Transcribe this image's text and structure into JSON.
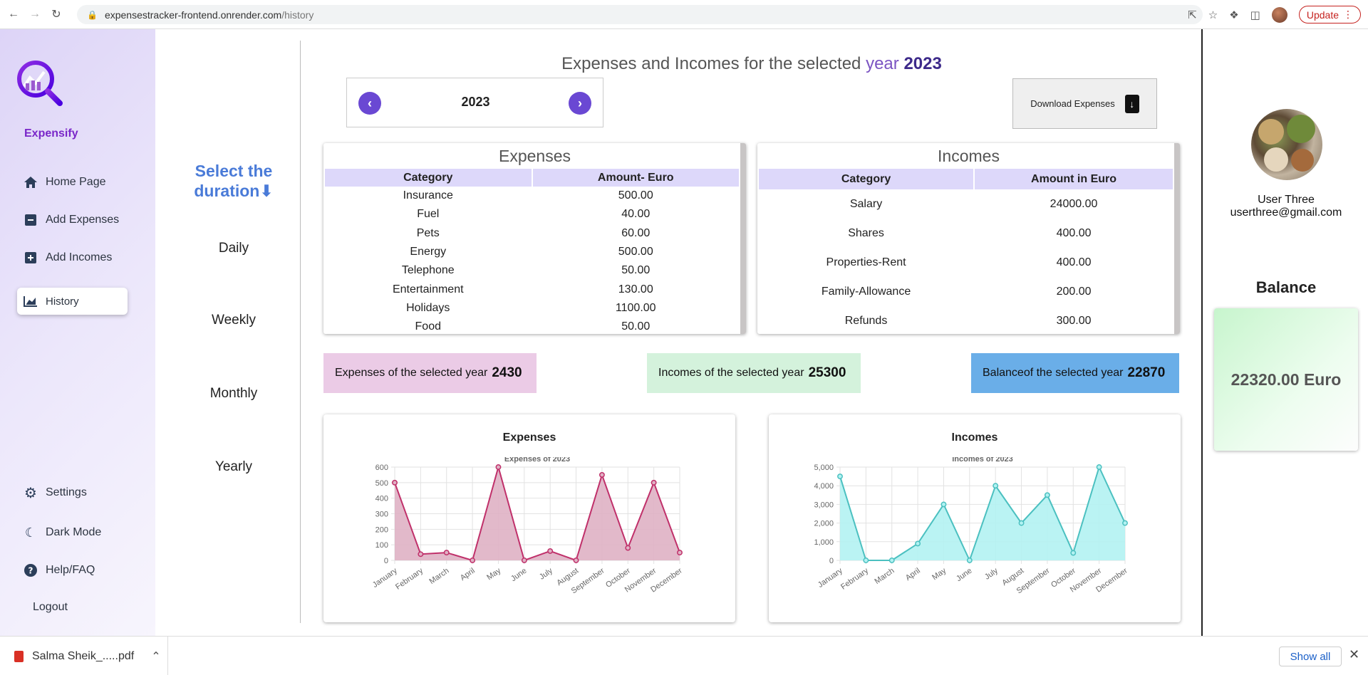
{
  "browser": {
    "url_host": "expensestracker-frontend.onrender.com",
    "url_path": "/history",
    "update_label": "Update"
  },
  "sidebar": {
    "brand": "Expensify",
    "items": [
      {
        "label": "Home Page",
        "icon": "home-icon"
      },
      {
        "label": "Add Expenses",
        "icon": "minus-square-icon"
      },
      {
        "label": "Add Incomes",
        "icon": "plus-square-icon"
      },
      {
        "label": "History",
        "icon": "chart-icon",
        "active": true
      }
    ],
    "bottom_items": [
      {
        "label": "Settings",
        "icon": "gear-icon"
      },
      {
        "label": "Dark Mode",
        "icon": "moon-icon"
      },
      {
        "label": "Help/FAQ",
        "icon": "question-icon"
      },
      {
        "label": "Logout"
      }
    ]
  },
  "duration": {
    "title_line1": "Select the",
    "title_line2": "duration",
    "arrow": "⬇",
    "options": [
      "Daily",
      "Weekly",
      "Monthly",
      "Yearly"
    ]
  },
  "main": {
    "title_prefix": "Expenses and Incomes for the selected",
    "title_word": "year",
    "title_year": "2023",
    "year_nav_value": "2023",
    "download_label": "Download Expenses"
  },
  "expenses_table": {
    "caption": "Expenses",
    "headers": [
      "Category",
      "Amount- Euro"
    ],
    "rows": [
      [
        "Insurance",
        "500.00"
      ],
      [
        "Fuel",
        "40.00"
      ],
      [
        "Pets",
        "60.00"
      ],
      [
        "Energy",
        "500.00"
      ],
      [
        "Telephone",
        "50.00"
      ],
      [
        "Entertainment",
        "130.00"
      ],
      [
        "Holidays",
        "1100.00"
      ],
      [
        "Food",
        "50.00"
      ]
    ]
  },
  "incomes_table": {
    "caption": "Incomes",
    "headers": [
      "Category",
      "Amount in Euro"
    ],
    "rows": [
      [
        "Salary",
        "24000.00"
      ],
      [
        "Shares",
        "400.00"
      ],
      [
        "Properties-Rent",
        "400.00"
      ],
      [
        "Family-Allowance",
        "200.00"
      ],
      [
        "Refunds",
        "300.00"
      ]
    ]
  },
  "summary": {
    "expenses_label": "Expenses of the selected year",
    "expenses_value": "2430",
    "incomes_label": "Incomes of the selected year",
    "incomes_value": "25300",
    "balance_label": "Balanceof the selected year",
    "balance_value": "22870",
    "colors": {
      "expenses": "#ebcbe6",
      "incomes": "#d4f2dc",
      "balance": "#6aaee8"
    }
  },
  "user": {
    "name": "User Three",
    "email": "userthree@gmail.com",
    "balance_title": "Balance",
    "balance_value": "22320.00 Euro"
  },
  "download_shelf": {
    "file_name": "Salma Sheik_.....pdf",
    "show_all": "Show all"
  },
  "chart_data": [
    {
      "type": "area",
      "card_title": "Expenses",
      "title": "Expenses of 2023",
      "categories": [
        "January",
        "February",
        "March",
        "April",
        "May",
        "June",
        "July",
        "August",
        "September",
        "October",
        "November",
        "December"
      ],
      "series": [
        {
          "values": [
            500,
            40,
            50,
            0,
            600,
            0,
            60,
            0,
            550,
            80,
            500,
            50
          ]
        }
      ],
      "ylim": [
        0,
        600
      ],
      "yticks": [
        "0",
        "100",
        "200",
        "300",
        "400",
        "500",
        "600"
      ],
      "ytick_values": [
        0,
        100,
        200,
        300,
        400,
        500,
        600
      ],
      "color": "#c0306a",
      "fill": "#dfb1c4",
      "grid": true
    },
    {
      "type": "area",
      "card_title": "Incomes",
      "title": "Incomes of 2023",
      "categories": [
        "January",
        "February",
        "March",
        "April",
        "May",
        "June",
        "July",
        "August",
        "September",
        "October",
        "November",
        "December"
      ],
      "series": [
        {
          "values": [
            4500,
            0,
            0,
            900,
            3000,
            0,
            4000,
            2000,
            3500,
            400,
            5000,
            2000
          ]
        }
      ],
      "ylim": [
        0,
        5000
      ],
      "yticks": [
        "0",
        "1,000",
        "2,000",
        "3,000",
        "4,000",
        "5,000"
      ],
      "ytick_values": [
        0,
        1000,
        2000,
        3000,
        4000,
        5000
      ],
      "color": "#4bc0c0",
      "fill": "#b2f2f2",
      "grid": true
    }
  ]
}
